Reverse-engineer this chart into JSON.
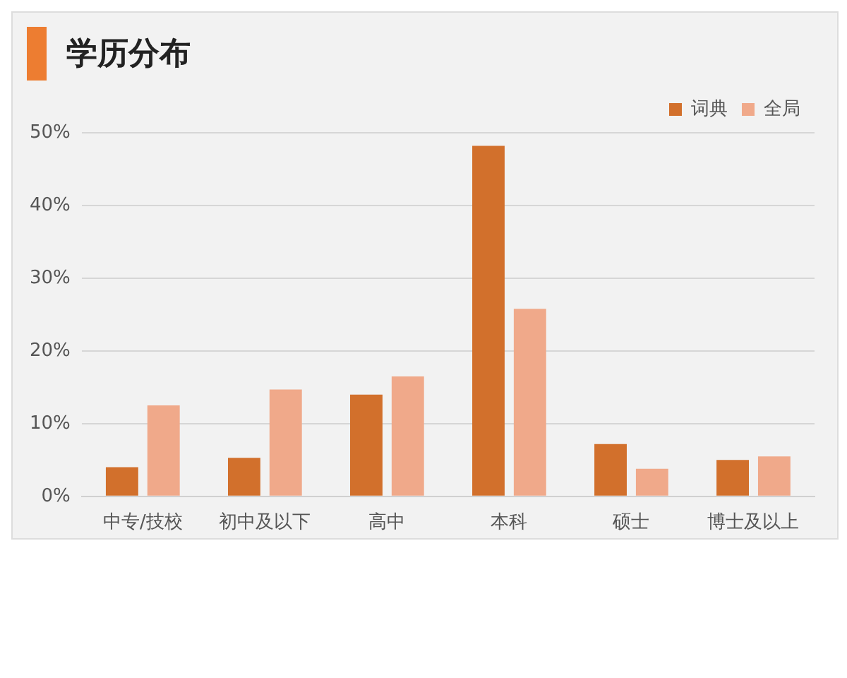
{
  "chart_data": {
    "type": "bar",
    "title": "学历分布",
    "categories": [
      "中专/技校",
      "初中及以下",
      "高中",
      "本科",
      "硕士",
      "博士及以上"
    ],
    "series": [
      {
        "name": "词典",
        "color": "#d2702c",
        "values": [
          4.0,
          5.3,
          14.0,
          48.2,
          7.2,
          5.0
        ]
      },
      {
        "name": "全局",
        "color": "#f0a98a",
        "values": [
          12.5,
          14.7,
          16.5,
          25.8,
          3.8,
          5.5
        ]
      }
    ],
    "ylim": [
      0,
      50
    ],
    "yticks": [
      {
        "value": 0,
        "label": "0%"
      },
      {
        "value": 10,
        "label": "10%"
      },
      {
        "value": 20,
        "label": "20%"
      },
      {
        "value": 30,
        "label": "30%"
      },
      {
        "value": 40,
        "label": "40%"
      },
      {
        "value": 50,
        "label": "50%"
      }
    ],
    "grid": "y",
    "legend": "top right"
  }
}
